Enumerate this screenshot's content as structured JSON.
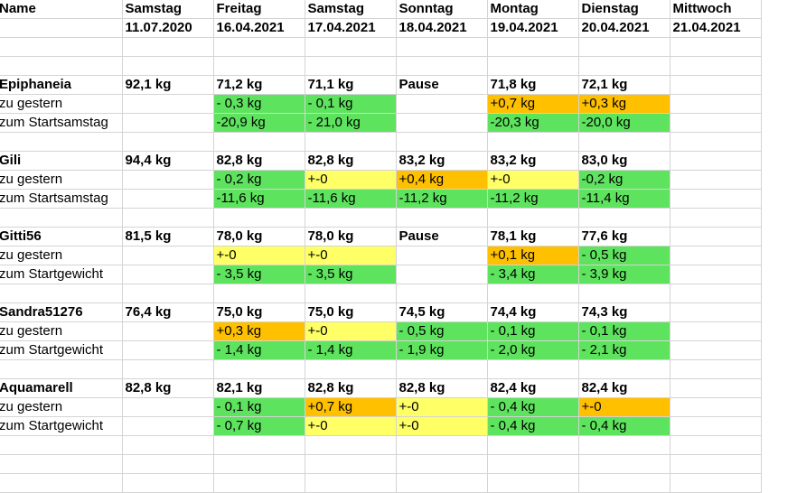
{
  "header": {
    "name_label": "Name",
    "days": [
      {
        "day": "Samstag",
        "date": "11.07.2020"
      },
      {
        "day": "Freitag",
        "date": "16.04.2021"
      },
      {
        "day": "Samstag",
        "date": "17.04.2021"
      },
      {
        "day": "Sonntag",
        "date": "18.04.2021"
      },
      {
        "day": "Montag",
        "date": "19.04.2021"
      },
      {
        "day": "Dienstag",
        "date": "20.04.2021"
      },
      {
        "day": "Mittwoch",
        "date": "21.04.2021"
      }
    ]
  },
  "colors": {
    "green": "#5ee35e",
    "yellow": "#ffff66",
    "orange": "#ffc000",
    "grid": "#d4d4d4"
  },
  "people": [
    {
      "name": "Epiphaneia",
      "weights": [
        "92,1 kg",
        "71,2 kg",
        "71,1 kg",
        "Pause",
        "71,8 kg",
        "72,1 kg",
        ""
      ],
      "rows": [
        {
          "label": "zu gestern",
          "cells": [
            {
              "v": "",
              "c": ""
            },
            {
              "v": "- 0,3 kg",
              "c": "g"
            },
            {
              "v": "- 0,1 kg",
              "c": "g"
            },
            {
              "v": "",
              "c": ""
            },
            {
              "v": "+0,7 kg",
              "c": "o"
            },
            {
              "v": "+0,3 kg",
              "c": "o"
            },
            {
              "v": "",
              "c": ""
            }
          ]
        },
        {
          "label": "zum Startsamstag",
          "cells": [
            {
              "v": "",
              "c": ""
            },
            {
              "v": "-20,9 kg",
              "c": "g"
            },
            {
              "v": "- 21,0 kg",
              "c": "g"
            },
            {
              "v": "",
              "c": ""
            },
            {
              "v": "-20,3 kg",
              "c": "g"
            },
            {
              "v": "-20,0 kg",
              "c": "g"
            },
            {
              "v": "",
              "c": ""
            }
          ]
        }
      ]
    },
    {
      "name": "Gili",
      "weights": [
        "94,4 kg",
        "82,8 kg",
        "82,8 kg",
        "83,2 kg",
        "83,2 kg",
        "83,0 kg",
        ""
      ],
      "rows": [
        {
          "label": "zu gestern",
          "cells": [
            {
              "v": "",
              "c": ""
            },
            {
              "v": "- 0,2 kg",
              "c": "g"
            },
            {
              "v": "+-0",
              "c": "y"
            },
            {
              "v": "+0,4 kg",
              "c": "o"
            },
            {
              "v": "+-0",
              "c": "y"
            },
            {
              "v": "-0,2 kg",
              "c": "g"
            },
            {
              "v": "",
              "c": ""
            }
          ]
        },
        {
          "label": "zum Startsamstag",
          "cells": [
            {
              "v": "",
              "c": ""
            },
            {
              "v": "-11,6 kg",
              "c": "g"
            },
            {
              "v": "-11,6 kg",
              "c": "g"
            },
            {
              "v": "-11,2 kg",
              "c": "g"
            },
            {
              "v": "-11,2 kg",
              "c": "g"
            },
            {
              "v": "-11,4 kg",
              "c": "g"
            },
            {
              "v": "",
              "c": ""
            }
          ]
        }
      ]
    },
    {
      "name": "Gitti56",
      "weights": [
        "81,5 kg",
        "78,0 kg",
        "78,0 kg",
        "Pause",
        "78,1 kg",
        "77,6 kg",
        ""
      ],
      "rows": [
        {
          "label": "zu gestern",
          "cells": [
            {
              "v": "",
              "c": ""
            },
            {
              "v": "+-0",
              "c": "y"
            },
            {
              "v": "+-0",
              "c": "y"
            },
            {
              "v": "",
              "c": ""
            },
            {
              "v": "+0,1 kg",
              "c": "o"
            },
            {
              "v": "- 0,5 kg",
              "c": "g"
            },
            {
              "v": "",
              "c": ""
            }
          ]
        },
        {
          "label": "zum Startgewicht",
          "cells": [
            {
              "v": "",
              "c": ""
            },
            {
              "v": "- 3,5 kg",
              "c": "g"
            },
            {
              "v": "- 3,5 kg",
              "c": "g"
            },
            {
              "v": "",
              "c": ""
            },
            {
              "v": "- 3,4 kg",
              "c": "g"
            },
            {
              "v": "- 3,9 kg",
              "c": "g"
            },
            {
              "v": "",
              "c": ""
            }
          ]
        }
      ]
    },
    {
      "name": "Sandra51276",
      "weights": [
        "76,4 kg",
        "75,0 kg",
        "75,0 kg",
        "74,5 kg",
        "74,4 kg",
        "74,3 kg",
        ""
      ],
      "rows": [
        {
          "label": "zu gestern",
          "cells": [
            {
              "v": "",
              "c": ""
            },
            {
              "v": "+0,3 kg",
              "c": "o"
            },
            {
              "v": "+-0",
              "c": "y"
            },
            {
              "v": "- 0,5 kg",
              "c": "g"
            },
            {
              "v": "- 0,1 kg",
              "c": "g"
            },
            {
              "v": "- 0,1 kg",
              "c": "g"
            },
            {
              "v": "",
              "c": ""
            }
          ]
        },
        {
          "label": "zum Startgewicht",
          "cells": [
            {
              "v": "",
              "c": ""
            },
            {
              "v": "- 1,4 kg",
              "c": "g"
            },
            {
              "v": "- 1,4 kg",
              "c": "g"
            },
            {
              "v": "- 1,9 kg",
              "c": "g"
            },
            {
              "v": "- 2,0 kg",
              "c": "g"
            },
            {
              "v": "- 2,1 kg",
              "c": "g"
            },
            {
              "v": "",
              "c": ""
            }
          ]
        }
      ]
    },
    {
      "name": "Aquamarell",
      "weights": [
        "82,8 kg",
        "82,1 kg",
        "82,8 kg",
        "82,8 kg",
        "82,4 kg",
        "82,4 kg",
        ""
      ],
      "rows": [
        {
          "label": "zu gestern",
          "cells": [
            {
              "v": "",
              "c": ""
            },
            {
              "v": "- 0,1 kg",
              "c": "g"
            },
            {
              "v": "+0,7 kg",
              "c": "o"
            },
            {
              "v": "+-0",
              "c": "y"
            },
            {
              "v": "- 0,4 kg",
              "c": "g"
            },
            {
              "v": "+-0",
              "c": "o"
            },
            {
              "v": "",
              "c": ""
            }
          ]
        },
        {
          "label": "zum Startgewicht",
          "cells": [
            {
              "v": "",
              "c": ""
            },
            {
              "v": "- 0,7 kg",
              "c": "g"
            },
            {
              "v": "+-0",
              "c": "y"
            },
            {
              "v": "+-0",
              "c": "y"
            },
            {
              "v": "- 0,4 kg",
              "c": "g"
            },
            {
              "v": "- 0,4 kg",
              "c": "g"
            },
            {
              "v": "",
              "c": ""
            }
          ]
        }
      ]
    }
  ]
}
